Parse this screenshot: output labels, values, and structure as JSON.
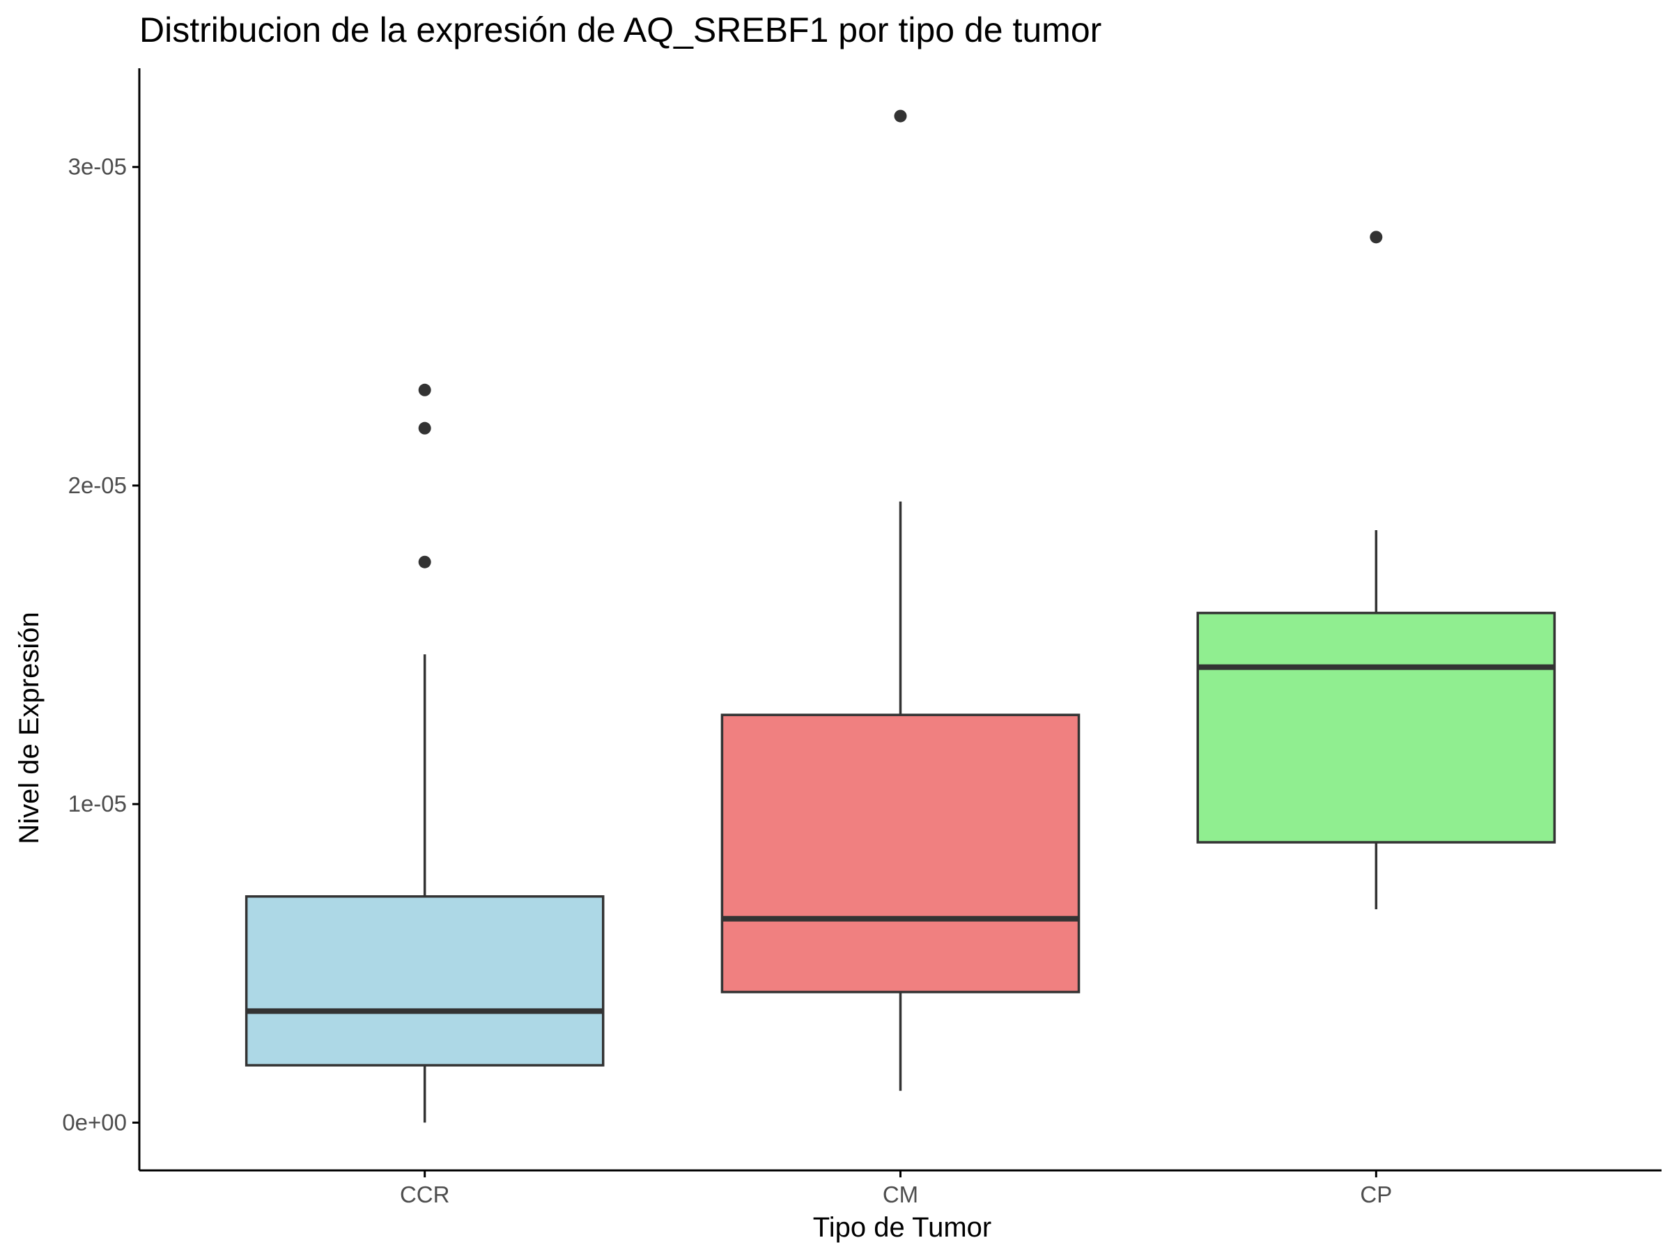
{
  "chart_data": {
    "type": "box",
    "title": "Distribucion de la expresión de AQ_SREBF1 por tipo de tumor",
    "xlabel": "Tipo de Tumor",
    "ylabel": "Nivel de Expresión",
    "ylim": [
      -1.5e-06,
      3.31e-05
    ],
    "yticks": [
      0,
      1e-05,
      2e-05,
      3e-05
    ],
    "ytick_labels": [
      "0e+00",
      "1e-05",
      "2e-05",
      "3e-05"
    ],
    "grid": false,
    "legend": "none",
    "categories": [
      "CCR",
      "CM",
      "CP"
    ],
    "boxes": [
      {
        "category": "CCR",
        "fill": "#add8e6",
        "whisker_low": 0.0,
        "q1": 1.8e-06,
        "median": 3.5e-06,
        "q3": 7.1e-06,
        "whisker_high": 1.47e-05,
        "outliers": [
          1.76e-05,
          2.18e-05,
          2.3e-05
        ]
      },
      {
        "category": "CM",
        "fill": "#f08080",
        "whisker_low": 1e-06,
        "q1": 4.1e-06,
        "median": 6.4e-06,
        "q3": 1.28e-05,
        "whisker_high": 1.95e-05,
        "outliers": [
          3.16e-05
        ]
      },
      {
        "category": "CP",
        "fill": "#90ee90",
        "whisker_low": 6.7e-06,
        "q1": 8.8e-06,
        "median": 1.43e-05,
        "q3": 1.6e-05,
        "whisker_high": 1.86e-05,
        "outliers": [
          2.78e-05
        ]
      }
    ],
    "colors": {
      "outline": "#333333",
      "axis": "#000000",
      "tick_text": "#4d4d4d"
    }
  }
}
